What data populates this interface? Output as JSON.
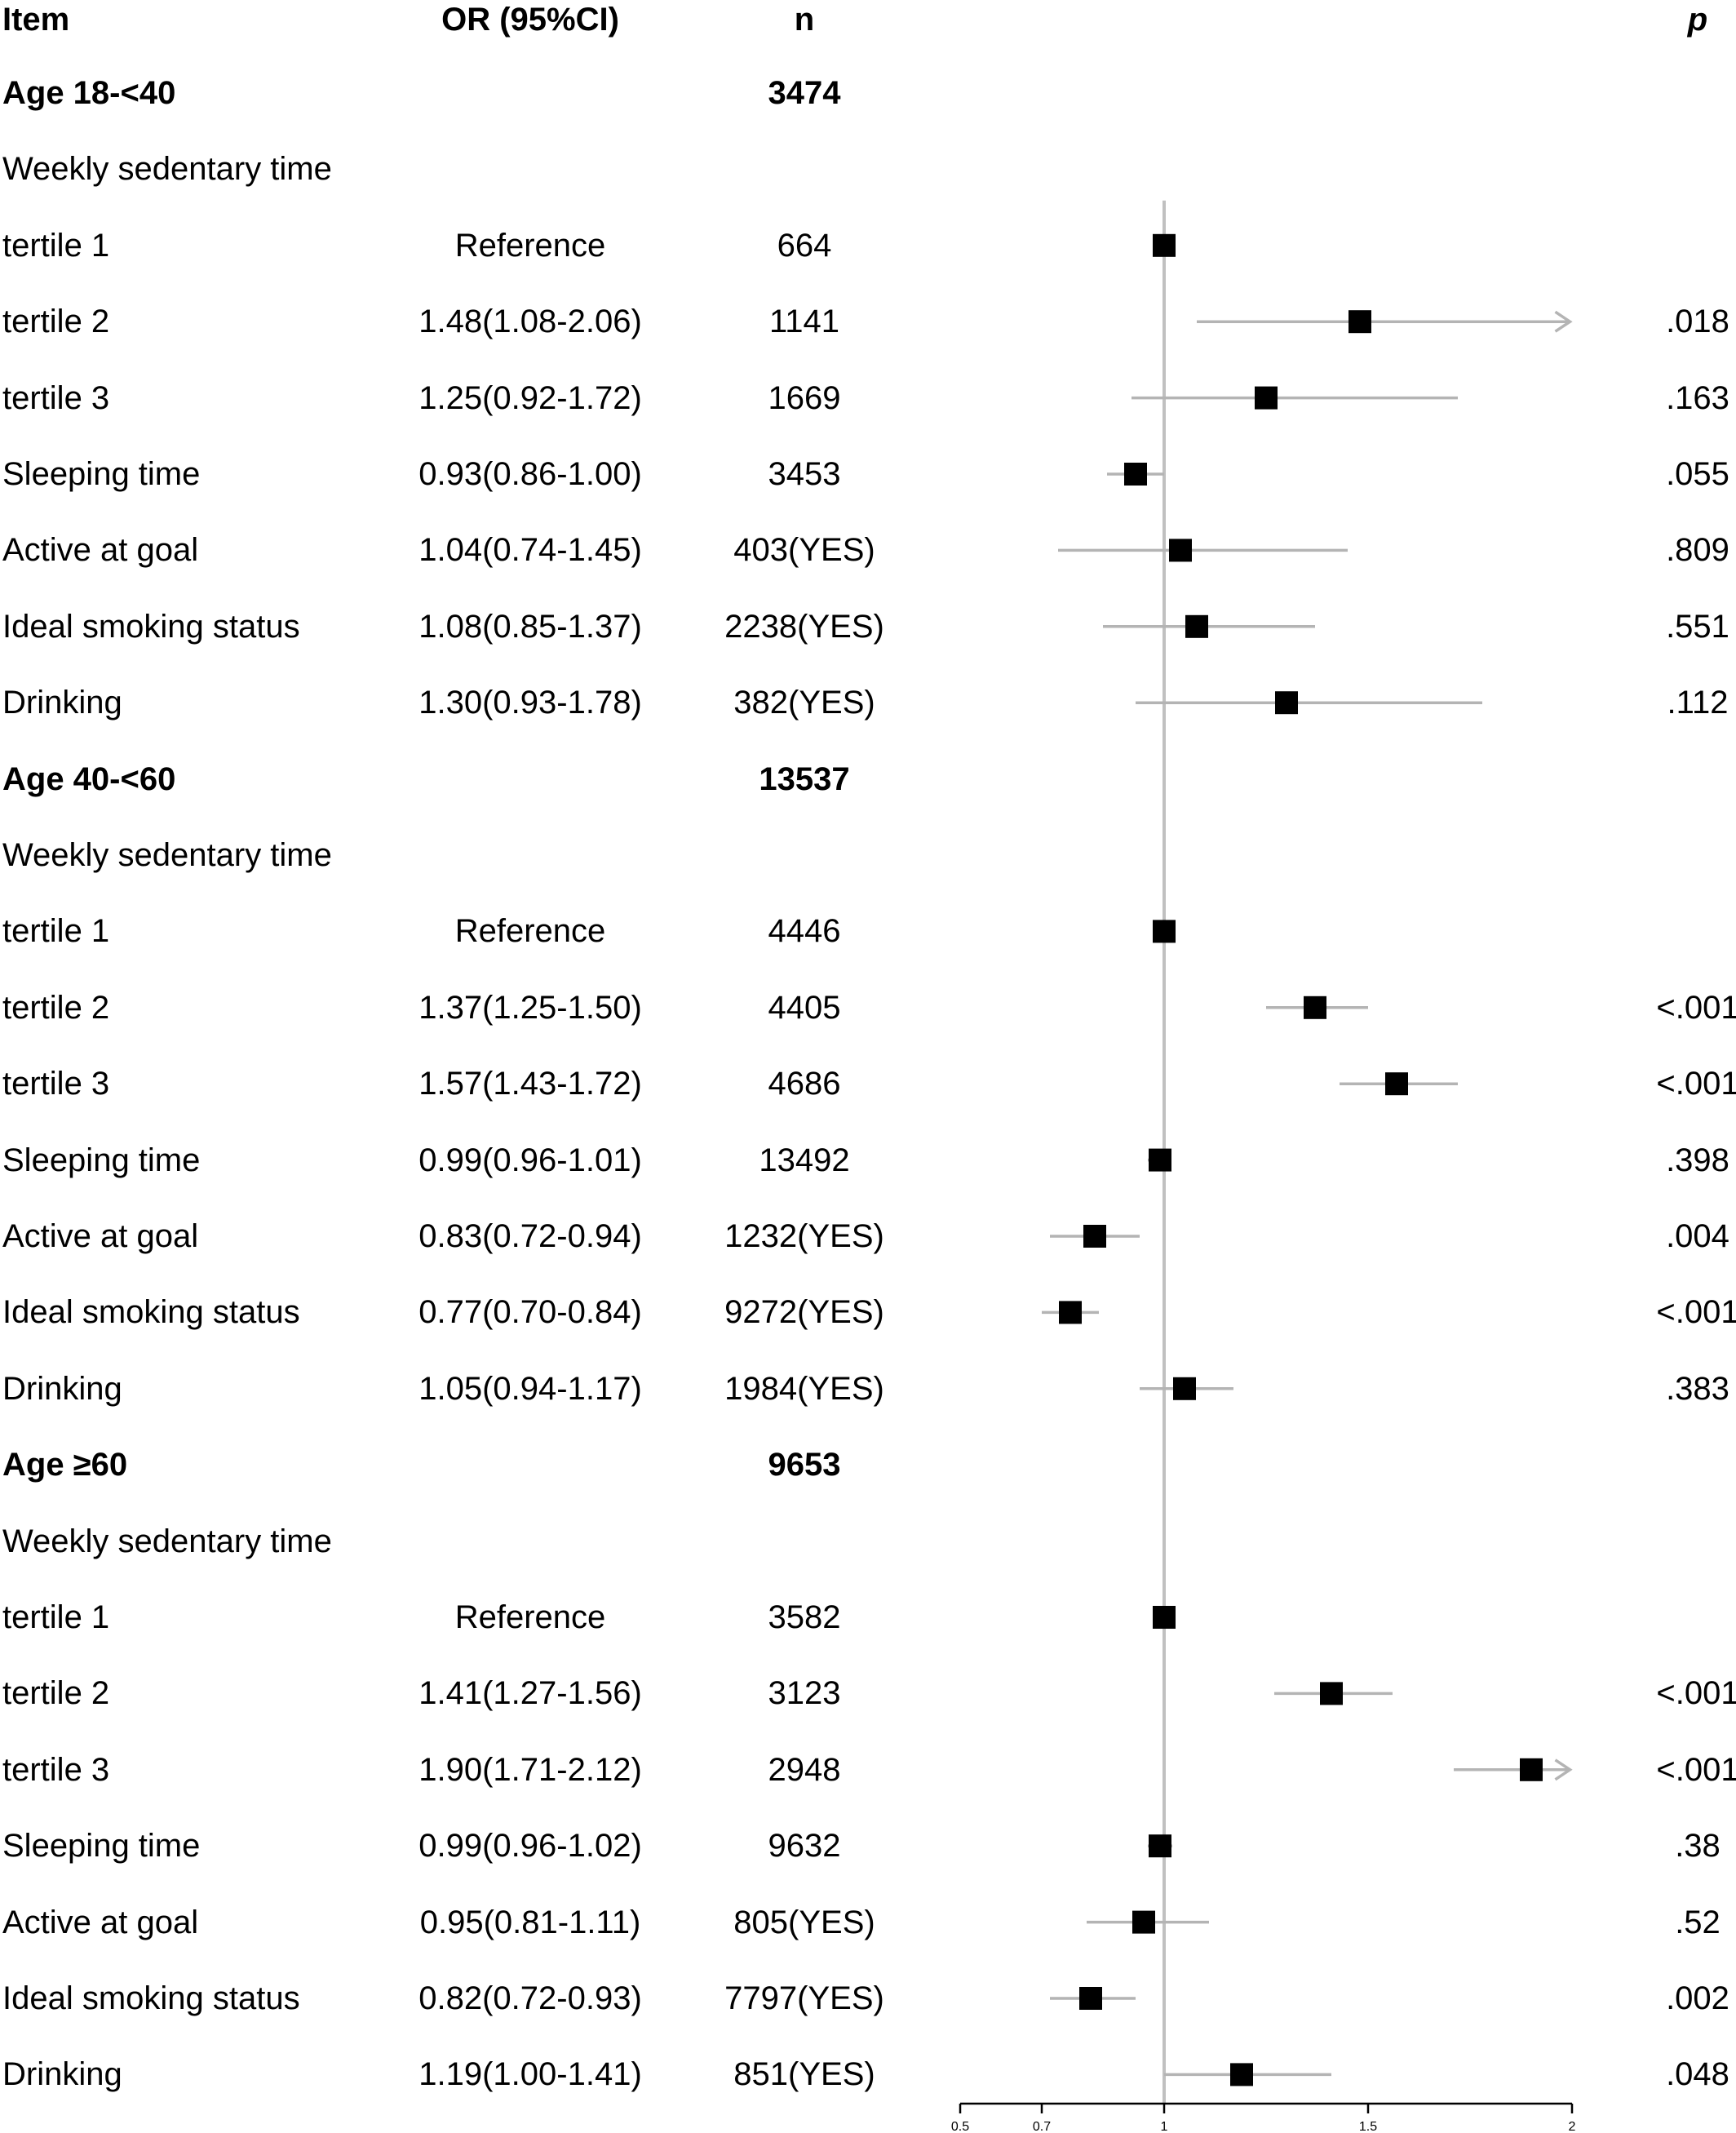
{
  "header": {
    "item": "Item",
    "or": "OR (95%CI)",
    "n": "n",
    "p": "p"
  },
  "colors": {
    "ci_line": "#b4b4b4",
    "ref_line": "#c0c0c0",
    "marker": "#000000"
  },
  "chart_data": {
    "type": "forest",
    "x_scale": "linear",
    "xlim": [
      0.5,
      2
    ],
    "reference_value": 1,
    "x_ticks": [
      {
        "value": 0.5,
        "label": "0.5"
      },
      {
        "value": 0.7,
        "label": "0.7"
      },
      {
        "value": 1,
        "label": "1"
      },
      {
        "value": 1.5,
        "label": "1.5"
      },
      {
        "value": 2,
        "label": "2"
      }
    ],
    "rows": [
      {
        "kind": "group",
        "item": "Age 18-<40",
        "n": "3474"
      },
      {
        "kind": "label",
        "item": "Weekly sedentary time"
      },
      {
        "kind": "data",
        "item": "tertile 1",
        "or_text": "Reference",
        "n": "664",
        "p": "",
        "or": 1.0
      },
      {
        "kind": "data",
        "item": "tertile 2",
        "or_text": "1.48(1.08-2.06)",
        "n": "1141",
        "p": ".018",
        "or": 1.48,
        "lo": 1.08,
        "hi": 2.06
      },
      {
        "kind": "data",
        "item": "tertile 3",
        "or_text": "1.25(0.92-1.72)",
        "n": "1669",
        "p": ".163",
        "or": 1.25,
        "lo": 0.92,
        "hi": 1.72
      },
      {
        "kind": "data",
        "item": "Sleeping time",
        "or_text": "0.93(0.86-1.00)",
        "n": "3453",
        "p": ".055",
        "or": 0.93,
        "lo": 0.86,
        "hi": 1.0
      },
      {
        "kind": "data",
        "item": "Active at goal",
        "or_text": "1.04(0.74-1.45)",
        "n": "403(YES)",
        "p": ".809",
        "or": 1.04,
        "lo": 0.74,
        "hi": 1.45
      },
      {
        "kind": "data",
        "item": "Ideal smoking status",
        "or_text": "1.08(0.85-1.37)",
        "n": "2238(YES)",
        "p": ".551",
        "or": 1.08,
        "lo": 0.85,
        "hi": 1.37
      },
      {
        "kind": "data",
        "item": "Drinking",
        "or_text": "1.30(0.93-1.78)",
        "n": "382(YES)",
        "p": ".112",
        "or": 1.3,
        "lo": 0.93,
        "hi": 1.78
      },
      {
        "kind": "group",
        "item": "Age 40-<60",
        "n": "13537"
      },
      {
        "kind": "label",
        "item": "Weekly sedentary time"
      },
      {
        "kind": "data",
        "item": "tertile 1",
        "or_text": "Reference",
        "n": "4446",
        "p": "",
        "or": 1.0
      },
      {
        "kind": "data",
        "item": "tertile 2",
        "or_text": "1.37(1.25-1.50)",
        "n": "4405",
        "p": "<.001",
        "or": 1.37,
        "lo": 1.25,
        "hi": 1.5
      },
      {
        "kind": "data",
        "item": "tertile 3",
        "or_text": "1.57(1.43-1.72)",
        "n": "4686",
        "p": "<.001",
        "or": 1.57,
        "lo": 1.43,
        "hi": 1.72
      },
      {
        "kind": "data",
        "item": "Sleeping time",
        "or_text": "0.99(0.96-1.01)",
        "n": "13492",
        "p": ".398",
        "or": 0.99,
        "lo": 0.96,
        "hi": 1.01
      },
      {
        "kind": "data",
        "item": "Active at goal",
        "or_text": "0.83(0.72-0.94)",
        "n": "1232(YES)",
        "p": ".004",
        "or": 0.83,
        "lo": 0.72,
        "hi": 0.94
      },
      {
        "kind": "data",
        "item": "Ideal smoking status",
        "or_text": "0.77(0.70-0.84)",
        "n": "9272(YES)",
        "p": "<.001",
        "or": 0.77,
        "lo": 0.7,
        "hi": 0.84
      },
      {
        "kind": "data",
        "item": "Drinking",
        "or_text": "1.05(0.94-1.17)",
        "n": "1984(YES)",
        "p": ".383",
        "or": 1.05,
        "lo": 0.94,
        "hi": 1.17
      },
      {
        "kind": "group",
        "item": "Age ≥60",
        "n": "9653"
      },
      {
        "kind": "label",
        "item": "Weekly sedentary time"
      },
      {
        "kind": "data",
        "item": "tertile 1",
        "or_text": "Reference",
        "n": "3582",
        "p": "",
        "or": 1.0
      },
      {
        "kind": "data",
        "item": "tertile 2",
        "or_text": "1.41(1.27-1.56)",
        "n": "3123",
        "p": "<.001",
        "or": 1.41,
        "lo": 1.27,
        "hi": 1.56
      },
      {
        "kind": "data",
        "item": "tertile 3",
        "or_text": "1.90(1.71-2.12)",
        "n": "2948",
        "p": "<.001",
        "or": 1.9,
        "lo": 1.71,
        "hi": 2.12
      },
      {
        "kind": "data",
        "item": "Sleeping time",
        "or_text": "0.99(0.96-1.02)",
        "n": "9632",
        "p": ".38",
        "or": 0.99,
        "lo": 0.96,
        "hi": 1.02
      },
      {
        "kind": "data",
        "item": "Active at goal",
        "or_text": "0.95(0.81-1.11)",
        "n": "805(YES)",
        "p": ".52",
        "or": 0.95,
        "lo": 0.81,
        "hi": 1.11
      },
      {
        "kind": "data",
        "item": "Ideal smoking status",
        "or_text": "0.82(0.72-0.93)",
        "n": "7797(YES)",
        "p": ".002",
        "or": 0.82,
        "lo": 0.72,
        "hi": 0.93
      },
      {
        "kind": "data",
        "item": "Drinking",
        "or_text": "1.19(1.00-1.41)",
        "n": "851(YES)",
        "p": ".048",
        "or": 1.19,
        "lo": 1.0,
        "hi": 1.41
      }
    ]
  }
}
